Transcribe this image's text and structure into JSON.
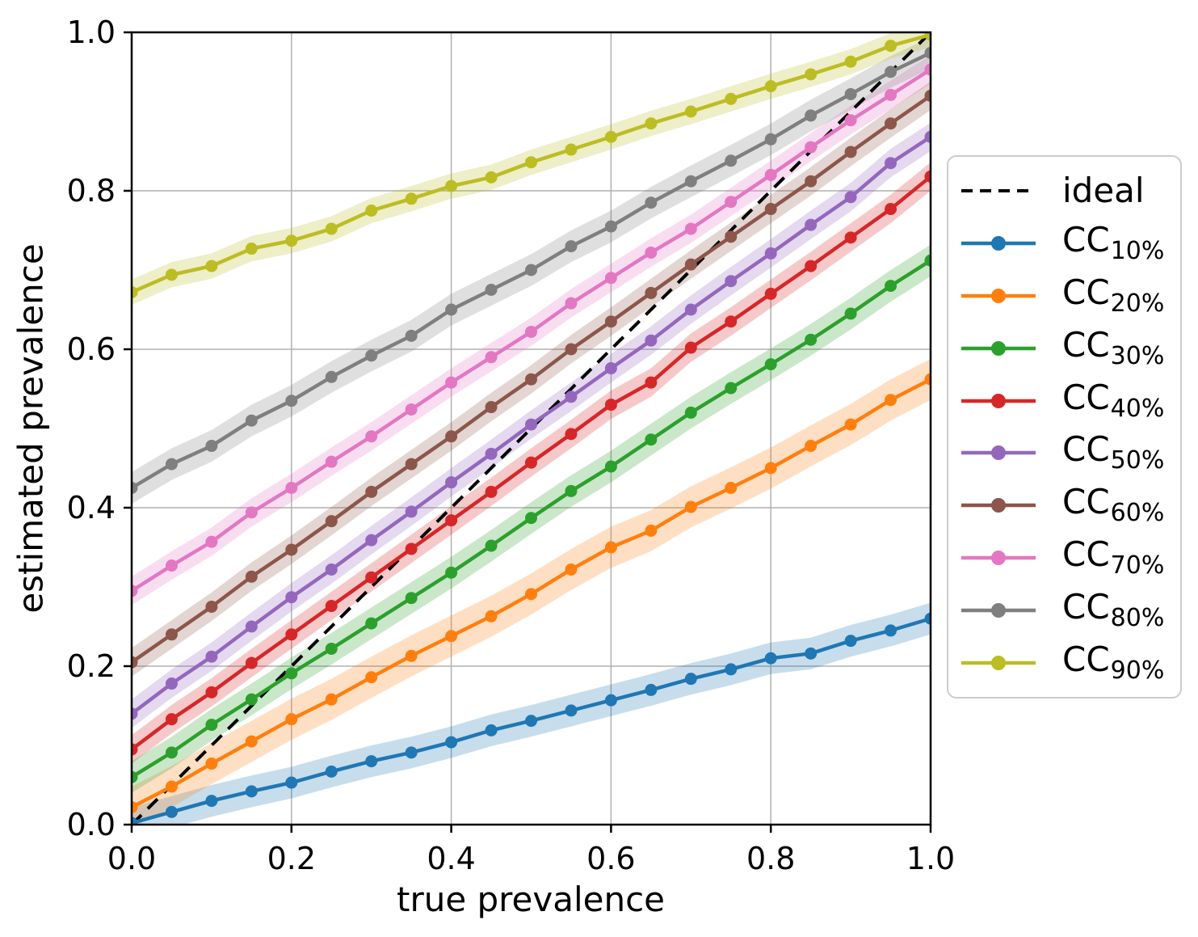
{
  "figure": {
    "background": "#ffffff",
    "grid_color": "#b0b0b0",
    "spine_color": "#000000",
    "text_color": "#000000"
  },
  "chart_data": {
    "type": "line",
    "title": "",
    "xlabel": "true prevalence",
    "ylabel": "estimated prevalence",
    "xlim": [
      0.0,
      1.0
    ],
    "ylim": [
      0.0,
      1.0
    ],
    "xticks": [
      0.0,
      0.2,
      0.4,
      0.6,
      0.8,
      1.0
    ],
    "yticks": [
      0.0,
      0.2,
      0.4,
      0.6,
      0.8,
      1.0
    ],
    "xtick_labels": [
      "0.0",
      "0.2",
      "0.4",
      "0.6",
      "0.8",
      "1.0"
    ],
    "ytick_labels": [
      "0.0",
      "0.2",
      "0.4",
      "0.6",
      "0.8",
      "1.0"
    ],
    "grid": true,
    "legend_position": "right",
    "x": [
      0.0,
      0.05,
      0.1,
      0.15,
      0.2,
      0.25,
      0.3,
      0.35,
      0.4,
      0.45,
      0.5,
      0.55,
      0.6,
      0.65,
      0.7,
      0.75,
      0.8,
      0.85,
      0.9,
      0.95,
      1.0
    ],
    "ideal": {
      "label": "ideal",
      "color": "#000000",
      "style": "dashed",
      "x": [
        0.0,
        1.0
      ],
      "y": [
        0.0,
        1.0
      ]
    },
    "series": [
      {
        "name": "CC",
        "sub": "10%",
        "id": "cc-10pct",
        "color": "#1f77b4",
        "band": 0.02,
        "values": [
          0.002,
          0.016,
          0.03,
          0.042,
          0.053,
          0.067,
          0.08,
          0.091,
          0.104,
          0.119,
          0.131,
          0.144,
          0.157,
          0.17,
          0.184,
          0.196,
          0.21,
          0.216,
          0.232,
          0.245,
          0.26
        ]
      },
      {
        "name": "CC",
        "sub": "20%",
        "id": "cc-20pct",
        "color": "#ff7f0e",
        "band": 0.026,
        "values": [
          0.022,
          0.048,
          0.077,
          0.105,
          0.133,
          0.158,
          0.186,
          0.213,
          0.238,
          0.263,
          0.291,
          0.322,
          0.35,
          0.371,
          0.401,
          0.425,
          0.45,
          0.478,
          0.505,
          0.536,
          0.562
        ]
      },
      {
        "name": "CC",
        "sub": "30%",
        "id": "cc-30pct",
        "color": "#2ca02c",
        "band": 0.02,
        "values": [
          0.06,
          0.091,
          0.126,
          0.158,
          0.191,
          0.222,
          0.254,
          0.286,
          0.318,
          0.352,
          0.387,
          0.421,
          0.452,
          0.486,
          0.52,
          0.551,
          0.581,
          0.612,
          0.645,
          0.68,
          0.712
        ]
      },
      {
        "name": "CC",
        "sub": "40%",
        "id": "cc-40pct",
        "color": "#d62728",
        "band": 0.018,
        "values": [
          0.095,
          0.133,
          0.167,
          0.204,
          0.24,
          0.276,
          0.312,
          0.348,
          0.384,
          0.42,
          0.457,
          0.493,
          0.53,
          0.558,
          0.602,
          0.635,
          0.67,
          0.705,
          0.741,
          0.777,
          0.818
        ]
      },
      {
        "name": "CC",
        "sub": "50%",
        "id": "cc-50pct",
        "color": "#9467bd",
        "band": 0.018,
        "values": [
          0.14,
          0.178,
          0.212,
          0.25,
          0.287,
          0.322,
          0.359,
          0.395,
          0.432,
          0.468,
          0.505,
          0.54,
          0.576,
          0.611,
          0.65,
          0.686,
          0.721,
          0.757,
          0.792,
          0.835,
          0.868
        ]
      },
      {
        "name": "CC",
        "sub": "60%",
        "id": "cc-60pct",
        "color": "#8c564b",
        "band": 0.018,
        "values": [
          0.205,
          0.24,
          0.275,
          0.313,
          0.347,
          0.383,
          0.42,
          0.455,
          0.49,
          0.527,
          0.562,
          0.6,
          0.635,
          0.671,
          0.707,
          0.742,
          0.777,
          0.812,
          0.849,
          0.885,
          0.92
        ]
      },
      {
        "name": "CC",
        "sub": "70%",
        "id": "cc-70pct",
        "color": "#e377c2",
        "band": 0.018,
        "values": [
          0.295,
          0.327,
          0.357,
          0.394,
          0.425,
          0.458,
          0.49,
          0.524,
          0.558,
          0.59,
          0.622,
          0.658,
          0.69,
          0.722,
          0.752,
          0.786,
          0.82,
          0.855,
          0.889,
          0.921,
          0.953
        ]
      },
      {
        "name": "CC",
        "sub": "80%",
        "id": "cc-80pct",
        "color": "#7f7f7f",
        "band": 0.02,
        "values": [
          0.425,
          0.455,
          0.478,
          0.51,
          0.535,
          0.565,
          0.592,
          0.617,
          0.65,
          0.675,
          0.7,
          0.73,
          0.755,
          0.785,
          0.812,
          0.838,
          0.865,
          0.895,
          0.922,
          0.95,
          0.974
        ]
      },
      {
        "name": "CC",
        "sub": "90%",
        "id": "cc-90pct",
        "color": "#bcbd22",
        "band": 0.016,
        "values": [
          0.672,
          0.694,
          0.705,
          0.727,
          0.737,
          0.752,
          0.775,
          0.79,
          0.806,
          0.817,
          0.836,
          0.852,
          0.868,
          0.885,
          0.9,
          0.916,
          0.932,
          0.947,
          0.963,
          0.983,
          0.997
        ]
      }
    ]
  }
}
